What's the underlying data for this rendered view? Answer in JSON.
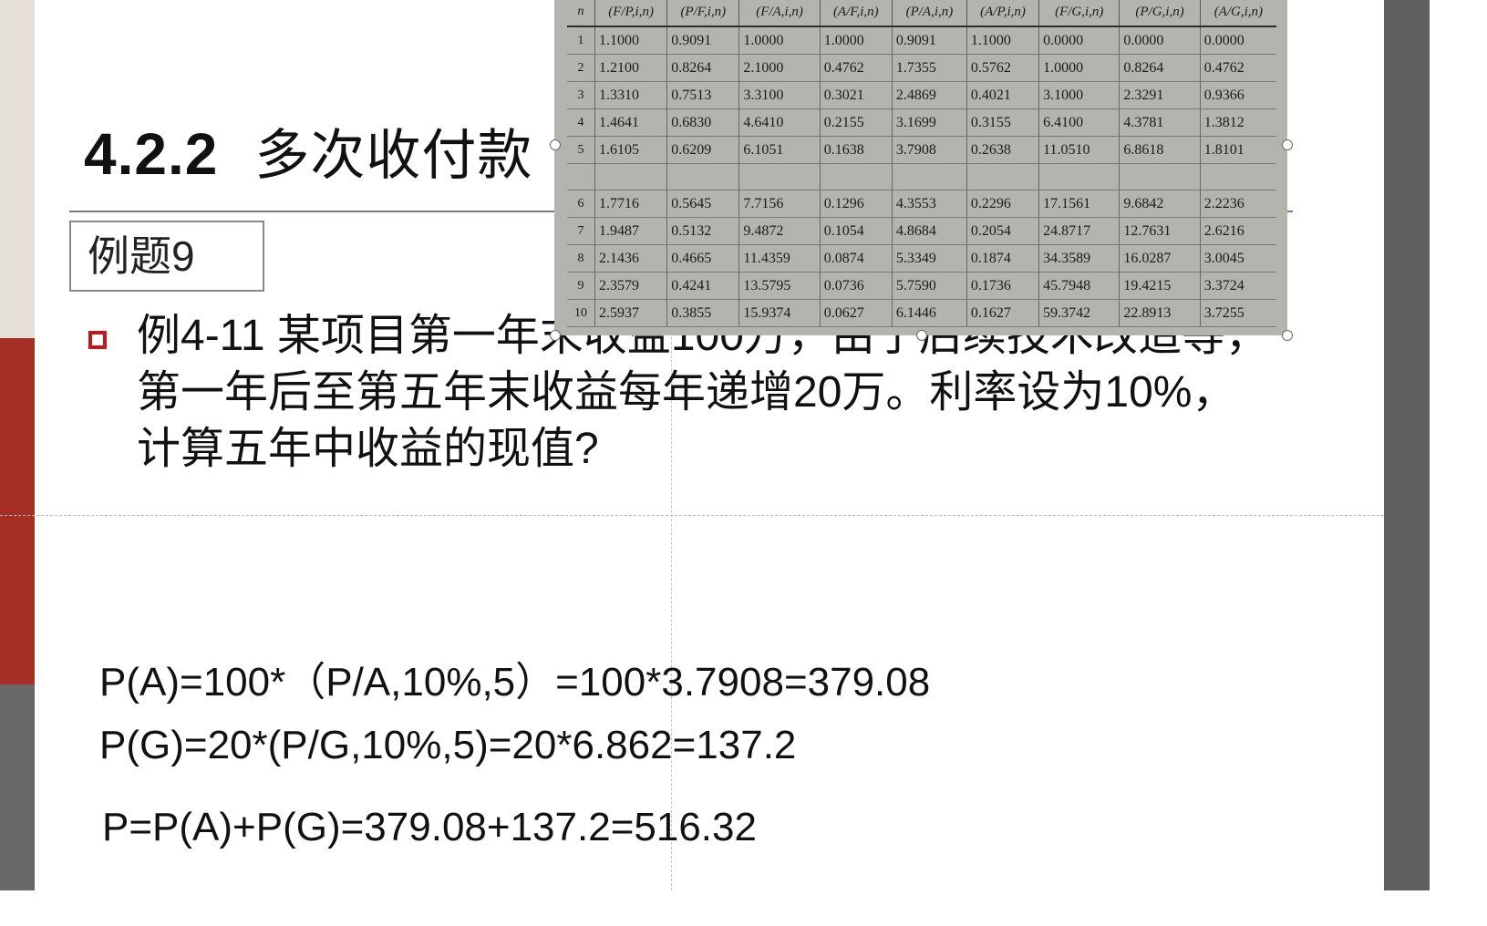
{
  "slide": {
    "title_number": "4.2.2",
    "title_text": "多次收付款",
    "example_label": "例题9",
    "problem": "例4-11  某项目第一年末收益100万，由于后续技术改造等，第一年后至第五年末收益每年递增20万。利率设为10%，计算五年中收益的现值?",
    "formulas": [
      "P(A)=100*（P/A,10%,5）=100*3.7908=379.08",
      "P(G)=20*(P/G,10%,5)=20*6.862=137.2",
      "P=P(A)+P(G)=379.08+137.2=516.32"
    ]
  },
  "factor_table": {
    "headers": [
      "n",
      "(F/P,i,n)",
      "(P/F,i,n)",
      "(F/A,i,n)",
      "(A/F,i,n)",
      "(P/A,i,n)",
      "(A/P,i,n)",
      "(F/G,i,n)",
      "(P/G,i,n)",
      "(A/G,i,n)"
    ],
    "rows": [
      [
        "1",
        "1.1000",
        "0.9091",
        "1.0000",
        "1.0000",
        "0.9091",
        "1.1000",
        "0.0000",
        "0.0000",
        "0.0000"
      ],
      [
        "2",
        "1.2100",
        "0.8264",
        "2.1000",
        "0.4762",
        "1.7355",
        "0.5762",
        "1.0000",
        "0.8264",
        "0.4762"
      ],
      [
        "3",
        "1.3310",
        "0.7513",
        "3.3100",
        "0.3021",
        "2.4869",
        "0.4021",
        "3.1000",
        "2.3291",
        "0.9366"
      ],
      [
        "4",
        "1.4641",
        "0.6830",
        "4.6410",
        "0.2155",
        "3.1699",
        "0.3155",
        "6.4100",
        "4.3781",
        "1.3812"
      ],
      [
        "5",
        "1.6105",
        "0.6209",
        "6.1051",
        "0.1638",
        "3.7908",
        "0.2638",
        "11.0510",
        "6.8618",
        "1.8101"
      ],
      [
        "6",
        "1.7716",
        "0.5645",
        "7.7156",
        "0.1296",
        "4.3553",
        "0.2296",
        "17.1561",
        "9.6842",
        "2.2236"
      ],
      [
        "7",
        "1.9487",
        "0.5132",
        "9.4872",
        "0.1054",
        "4.8684",
        "0.2054",
        "24.8717",
        "12.7631",
        "2.6216"
      ],
      [
        "8",
        "2.1436",
        "0.4665",
        "11.4359",
        "0.0874",
        "5.3349",
        "0.1874",
        "34.3589",
        "16.0287",
        "3.0045"
      ],
      [
        "9",
        "2.3579",
        "0.4241",
        "13.5795",
        "0.0736",
        "5.7590",
        "0.1736",
        "45.7948",
        "19.4215",
        "3.3724"
      ],
      [
        "10",
        "2.5937",
        "0.3855",
        "15.9374",
        "0.0627",
        "6.1446",
        "0.1627",
        "59.3742",
        "22.8913",
        "3.7255"
      ]
    ]
  },
  "colors": {
    "accent_red": "#a52f25",
    "bullet_red": "#c0181c",
    "side_cream": "#e7e2d9",
    "side_gray": "#6b6967"
  }
}
